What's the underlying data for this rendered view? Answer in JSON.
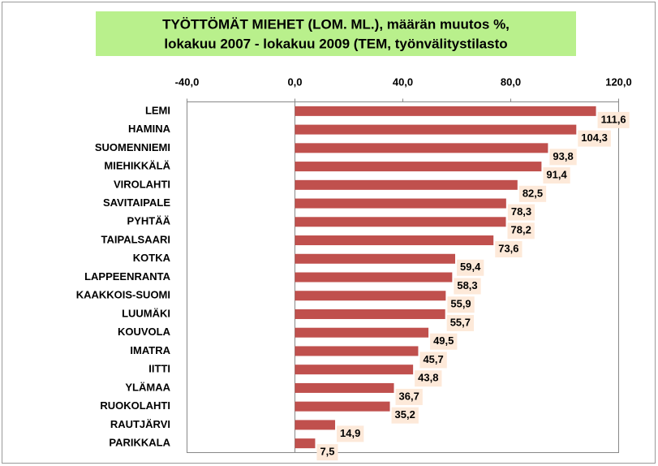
{
  "chart_data": {
    "type": "bar",
    "orientation": "horizontal",
    "title": [
      "TYÖTTÖMÄT MIEHET (LOM. ML.), määrän muutos  %,",
      "lokakuu 2007 - lokakuu 2009 (TEM, työnvälitystilasto"
    ],
    "categories": [
      "LEMI",
      "HAMINA",
      "SUOMENNIEMI",
      "MIEHIKKÄLÄ",
      "VIROLAHTI",
      "SAVITAIPALE",
      "PYHTÄÄ",
      "TAIPALSAARI",
      "KOTKA",
      "LAPPEENRANTA",
      "KAAKKOIS-SUOMI",
      "LUUMÄKI",
      "KOUVOLA",
      "IMATRA",
      "IITTI",
      "YLÄMAA",
      "RUOKOLAHTI",
      "RAUTJÄRVI",
      "PARIKKALA"
    ],
    "values": [
      111.6,
      104.3,
      93.8,
      91.4,
      82.5,
      78.3,
      78.2,
      73.6,
      59.4,
      58.3,
      55.9,
      55.7,
      49.5,
      45.7,
      43.8,
      36.7,
      35.2,
      14.9,
      7.5
    ],
    "value_labels": [
      "111,6",
      "104,3",
      "93,8",
      "91,4",
      "82,5",
      "78,3",
      "78,2",
      "73,6",
      "59,4",
      "58,3",
      "55,9",
      "55,7",
      "49,5",
      "45,7",
      "43,8",
      "36,7",
      "35,2",
      "14,9",
      "7,5"
    ],
    "color": "#c0504d",
    "xlim": [
      -40,
      120
    ],
    "xticks": [
      {
        "value": -40,
        "label": "-40,0"
      },
      {
        "value": 0,
        "label": "0,0"
      },
      {
        "value": 40,
        "label": "40,0"
      },
      {
        "value": 80,
        "label": "80,0"
      },
      {
        "value": 120,
        "label": "120,0"
      }
    ],
    "grid": false
  }
}
